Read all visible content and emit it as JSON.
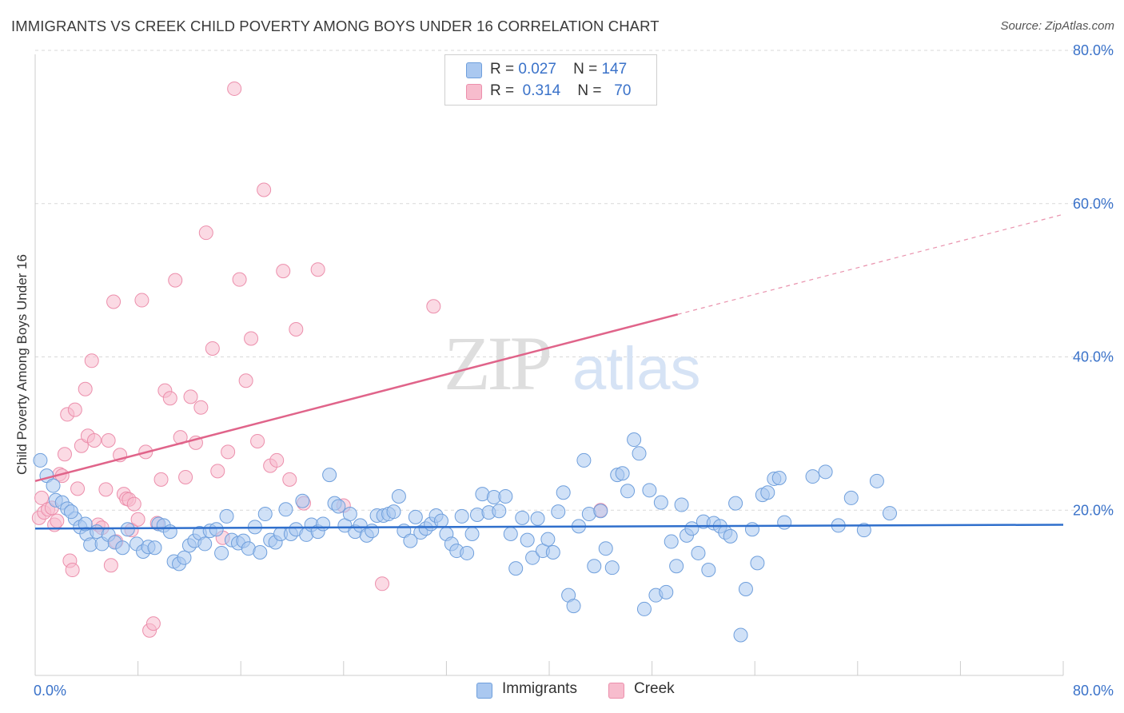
{
  "header": {
    "title": "IMMIGRANTS VS CREEK CHILD POVERTY AMONG BOYS UNDER 16 CORRELATION CHART",
    "source": "Source: ZipAtlas.com"
  },
  "stats": [
    {
      "r_label": "R =",
      "r_value": "0.027",
      "n_label": "N =",
      "n_value": "147",
      "color": "#aac8f0"
    },
    {
      "r_label": "R =",
      "r_value": "0.314",
      "n_label": "N =",
      "n_value": "70",
      "color": "#f7bccd"
    }
  ],
  "legend": [
    {
      "label": "Immigrants",
      "color": "#aac8f0"
    },
    {
      "label": "Creek",
      "color": "#f7bccd"
    }
  ],
  "watermark": {
    "zip": "ZIP",
    "atlas": "atlas"
  },
  "colors": {
    "immigrants_fill": "#aac8f0",
    "immigrants_stroke": "#6f9fdc",
    "immigrants_line": "#2f6fcc",
    "creek_fill": "#f7bccd",
    "creek_stroke": "#ec8fac",
    "creek_line": "#e0648a",
    "grid": "#d9d9d9",
    "tick_label": "#3a72c9"
  },
  "chart_data": {
    "type": "scatter",
    "title": "IMMIGRANTS VS CREEK CHILD POVERTY AMONG BOYS UNDER 16 CORRELATION CHART",
    "xlabel": "",
    "ylabel": "Child Poverty Among Boys Under 16",
    "xlim": [
      0,
      80
    ],
    "ylim": [
      0,
      80
    ],
    "x_tick_labels": [
      "0.0%",
      "80.0%"
    ],
    "y_ticks": [
      20,
      40,
      60,
      80
    ],
    "y_tick_labels": [
      "20.0%",
      "40.0%",
      "60.0%",
      "80.0%"
    ],
    "grid": true,
    "legend_position": "bottom-center",
    "series": [
      {
        "name": "Immigrants",
        "r": 0.027,
        "n": 147,
        "trend": {
          "x": [
            0,
            80
          ],
          "y": [
            17.6,
            18.1
          ],
          "solid_until": 80
        },
        "points": [
          [
            0.4,
            26.5
          ],
          [
            0.9,
            24.5
          ],
          [
            1.4,
            23.2
          ],
          [
            1.6,
            21.3
          ],
          [
            2.1,
            21.0
          ],
          [
            2.5,
            20.2
          ],
          [
            3.1,
            18.9
          ],
          [
            3.5,
            17.8
          ],
          [
            4.0,
            16.9
          ],
          [
            4.3,
            15.5
          ],
          [
            2.8,
            19.8
          ],
          [
            3.9,
            18.2
          ],
          [
            4.8,
            17.2
          ],
          [
            5.2,
            15.6
          ],
          [
            5.7,
            16.8
          ],
          [
            6.2,
            15.8
          ],
          [
            6.8,
            15.1
          ],
          [
            7.2,
            17.5
          ],
          [
            7.9,
            15.6
          ],
          [
            8.4,
            14.6
          ],
          [
            8.8,
            15.2
          ],
          [
            9.3,
            15.1
          ],
          [
            9.6,
            18.2
          ],
          [
            10.0,
            18.0
          ],
          [
            10.5,
            17.2
          ],
          [
            10.8,
            13.3
          ],
          [
            11.2,
            13.0
          ],
          [
            11.6,
            13.8
          ],
          [
            12.0,
            15.4
          ],
          [
            12.4,
            16.0
          ],
          [
            12.8,
            17.0
          ],
          [
            13.2,
            15.6
          ],
          [
            13.6,
            17.3
          ],
          [
            14.1,
            17.5
          ],
          [
            14.5,
            14.4
          ],
          [
            14.9,
            19.2
          ],
          [
            15.3,
            16.1
          ],
          [
            15.8,
            15.7
          ],
          [
            16.2,
            16.0
          ],
          [
            16.6,
            15.0
          ],
          [
            17.1,
            17.8
          ],
          [
            17.5,
            14.5
          ],
          [
            17.9,
            19.5
          ],
          [
            18.3,
            16.1
          ],
          [
            18.7,
            15.8
          ],
          [
            19.1,
            16.9
          ],
          [
            19.5,
            20.1
          ],
          [
            19.9,
            16.9
          ],
          [
            20.3,
            17.5
          ],
          [
            20.8,
            21.2
          ],
          [
            21.1,
            16.8
          ],
          [
            21.5,
            18.1
          ],
          [
            22.0,
            17.2
          ],
          [
            22.4,
            18.2
          ],
          [
            22.9,
            24.6
          ],
          [
            23.3,
            20.9
          ],
          [
            23.6,
            20.5
          ],
          [
            24.1,
            18.0
          ],
          [
            24.5,
            19.5
          ],
          [
            24.9,
            17.2
          ],
          [
            25.3,
            18.0
          ],
          [
            25.8,
            16.7
          ],
          [
            26.2,
            17.3
          ],
          [
            26.6,
            19.3
          ],
          [
            27.1,
            19.3
          ],
          [
            27.5,
            19.5
          ],
          [
            27.9,
            19.8
          ],
          [
            28.3,
            21.8
          ],
          [
            28.7,
            17.3
          ],
          [
            29.2,
            16.0
          ],
          [
            29.6,
            19.1
          ],
          [
            30.0,
            17.1
          ],
          [
            30.4,
            17.6
          ],
          [
            30.8,
            18.2
          ],
          [
            31.2,
            19.3
          ],
          [
            31.6,
            18.6
          ],
          [
            32.0,
            16.9
          ],
          [
            32.4,
            15.6
          ],
          [
            32.8,
            14.7
          ],
          [
            33.2,
            19.2
          ],
          [
            33.6,
            14.4
          ],
          [
            34.0,
            16.9
          ],
          [
            34.4,
            19.4
          ],
          [
            34.8,
            22.1
          ],
          [
            35.3,
            19.7
          ],
          [
            35.7,
            21.7
          ],
          [
            36.1,
            19.9
          ],
          [
            36.6,
            21.8
          ],
          [
            37.0,
            16.9
          ],
          [
            37.4,
            12.4
          ],
          [
            37.9,
            19.0
          ],
          [
            38.3,
            16.1
          ],
          [
            38.7,
            13.8
          ],
          [
            39.1,
            18.9
          ],
          [
            39.5,
            14.7
          ],
          [
            39.9,
            16.2
          ],
          [
            40.3,
            14.5
          ],
          [
            40.7,
            19.8
          ],
          [
            41.1,
            22.3
          ],
          [
            41.5,
            8.9
          ],
          [
            41.9,
            7.5
          ],
          [
            42.3,
            17.9
          ],
          [
            42.7,
            26.5
          ],
          [
            43.1,
            19.5
          ],
          [
            43.5,
            12.7
          ],
          [
            44.0,
            19.9
          ],
          [
            44.4,
            15.0
          ],
          [
            44.9,
            12.5
          ],
          [
            45.3,
            24.6
          ],
          [
            45.7,
            24.8
          ],
          [
            46.1,
            22.5
          ],
          [
            46.6,
            29.2
          ],
          [
            47.0,
            27.4
          ],
          [
            47.4,
            7.1
          ],
          [
            47.8,
            22.6
          ],
          [
            48.3,
            8.9
          ],
          [
            48.7,
            21.0
          ],
          [
            49.1,
            9.3
          ],
          [
            49.5,
            15.9
          ],
          [
            49.9,
            12.7
          ],
          [
            50.3,
            20.7
          ],
          [
            50.7,
            16.7
          ],
          [
            51.1,
            17.6
          ],
          [
            51.6,
            14.4
          ],
          [
            52.0,
            18.5
          ],
          [
            52.4,
            12.2
          ],
          [
            52.8,
            18.3
          ],
          [
            53.3,
            17.9
          ],
          [
            53.7,
            17.1
          ],
          [
            54.1,
            16.6
          ],
          [
            54.5,
            20.9
          ],
          [
            54.9,
            3.7
          ],
          [
            55.3,
            9.7
          ],
          [
            55.8,
            17.5
          ],
          [
            56.2,
            13.1
          ],
          [
            56.6,
            22.0
          ],
          [
            57.0,
            22.3
          ],
          [
            57.5,
            24.1
          ],
          [
            57.9,
            24.2
          ],
          [
            58.3,
            18.4
          ],
          [
            60.5,
            24.4
          ],
          [
            61.5,
            25.0
          ],
          [
            62.5,
            18.0
          ],
          [
            63.5,
            21.6
          ],
          [
            64.5,
            17.4
          ],
          [
            65.5,
            23.8
          ],
          [
            66.5,
            19.6
          ]
        ]
      },
      {
        "name": "Creek",
        "r": 0.314,
        "n": 70,
        "trend": {
          "x": [
            0,
            80
          ],
          "y": [
            23.8,
            58.6
          ],
          "solid_until": 50
        },
        "points": [
          [
            0.3,
            19.0
          ],
          [
            0.5,
            21.6
          ],
          [
            0.7,
            19.7
          ],
          [
            1.0,
            20.1
          ],
          [
            1.3,
            20.3
          ],
          [
            1.5,
            18.1
          ],
          [
            1.7,
            18.6
          ],
          [
            1.9,
            24.7
          ],
          [
            2.1,
            24.5
          ],
          [
            2.3,
            27.3
          ],
          [
            2.5,
            32.5
          ],
          [
            2.7,
            13.4
          ],
          [
            2.9,
            12.2
          ],
          [
            3.1,
            33.1
          ],
          [
            3.3,
            22.8
          ],
          [
            3.6,
            28.4
          ],
          [
            3.9,
            35.8
          ],
          [
            4.1,
            29.7
          ],
          [
            4.4,
            39.5
          ],
          [
            4.6,
            29.1
          ],
          [
            4.9,
            18.1
          ],
          [
            5.2,
            17.7
          ],
          [
            5.5,
            22.7
          ],
          [
            5.7,
            29.1
          ],
          [
            5.9,
            12.8
          ],
          [
            6.1,
            47.2
          ],
          [
            6.3,
            15.9
          ],
          [
            6.6,
            27.2
          ],
          [
            6.9,
            22.1
          ],
          [
            7.1,
            21.5
          ],
          [
            7.3,
            21.4
          ],
          [
            7.5,
            17.4
          ],
          [
            7.7,
            20.8
          ],
          [
            8.0,
            18.8
          ],
          [
            8.3,
            47.4
          ],
          [
            8.6,
            27.6
          ],
          [
            8.9,
            4.3
          ],
          [
            9.2,
            5.2
          ],
          [
            9.5,
            18.3
          ],
          [
            9.8,
            24.0
          ],
          [
            10.1,
            35.6
          ],
          [
            10.5,
            34.6
          ],
          [
            10.9,
            50.0
          ],
          [
            11.3,
            29.5
          ],
          [
            11.7,
            24.3
          ],
          [
            12.1,
            34.8
          ],
          [
            12.5,
            28.8
          ],
          [
            12.9,
            33.4
          ],
          [
            13.3,
            56.2
          ],
          [
            13.8,
            41.1
          ],
          [
            14.2,
            25.1
          ],
          [
            14.6,
            16.4
          ],
          [
            15.0,
            27.6
          ],
          [
            15.5,
            75.0
          ],
          [
            15.9,
            50.1
          ],
          [
            16.4,
            36.9
          ],
          [
            16.8,
            42.4
          ],
          [
            17.3,
            29.0
          ],
          [
            17.8,
            61.8
          ],
          [
            18.3,
            25.8
          ],
          [
            18.8,
            26.5
          ],
          [
            19.3,
            51.2
          ],
          [
            19.8,
            24.0
          ],
          [
            20.3,
            43.6
          ],
          [
            20.9,
            20.9
          ],
          [
            22.0,
            51.4
          ],
          [
            24.0,
            20.6
          ],
          [
            27.0,
            10.4
          ],
          [
            31.0,
            46.6
          ],
          [
            44.0,
            20.0
          ]
        ]
      }
    ]
  }
}
